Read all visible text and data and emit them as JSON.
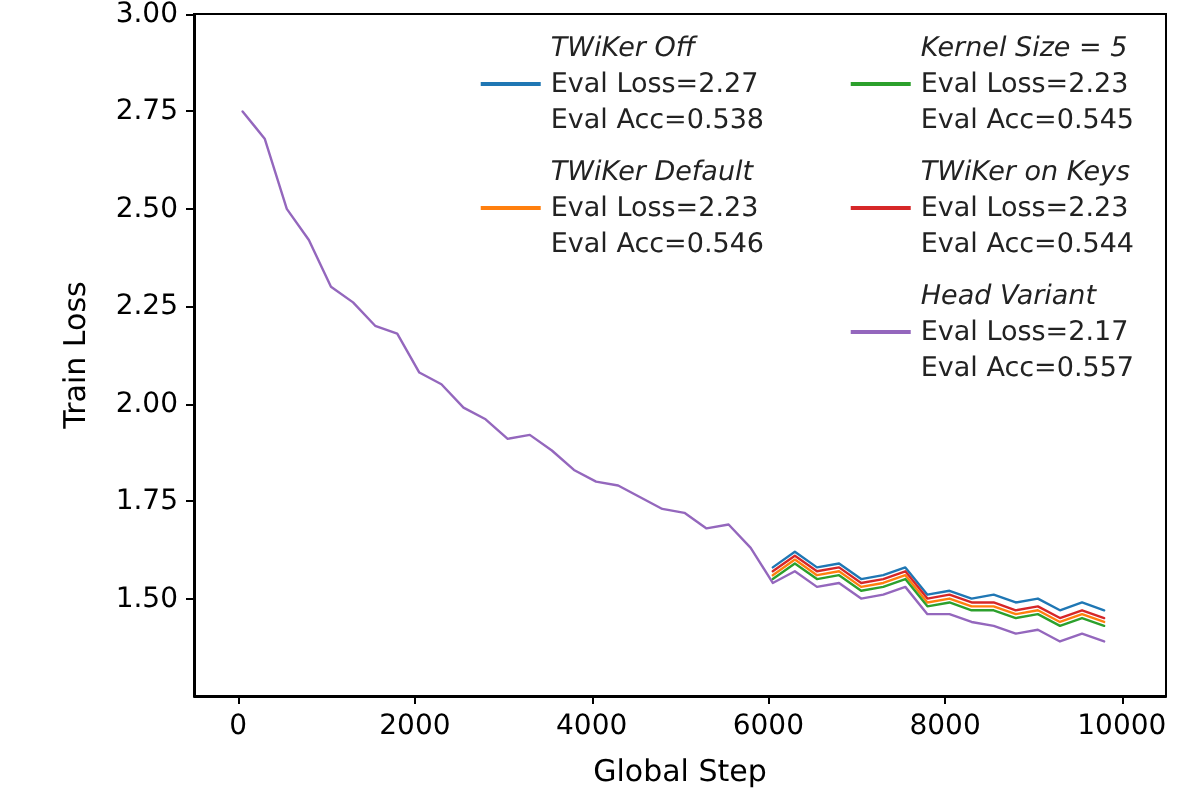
{
  "chart_data": {
    "type": "line",
    "xlabel": "Global Step",
    "ylabel": "Train Loss",
    "x": [
      50,
      300,
      550,
      800,
      1050,
      1300,
      1550,
      1800,
      2050,
      2300,
      2550,
      2800,
      3050,
      3300,
      3550,
      3800,
      4050,
      4300,
      4550,
      4800,
      5050,
      5300,
      5550,
      5800,
      6050,
      6300,
      6550,
      6800,
      7050,
      7300,
      7550,
      7800,
      8050,
      8300,
      8550,
      8800,
      9050,
      9300,
      9550,
      9800
    ],
    "series": [
      {
        "name": "TWiKer Off\nEval Loss=2.27\nEval Acc=0.538",
        "color": "#1f77b4",
        "values": [
          null,
          null,
          null,
          null,
          null,
          null,
          null,
          null,
          null,
          null,
          null,
          null,
          null,
          null,
          null,
          null,
          null,
          null,
          null,
          null,
          null,
          null,
          null,
          null,
          1.58,
          1.62,
          1.58,
          1.59,
          1.55,
          1.56,
          1.58,
          1.51,
          1.52,
          1.5,
          1.51,
          1.49,
          1.5,
          1.47,
          1.49,
          1.47
        ]
      },
      {
        "name": "TWiKer Default\nEval Loss=2.23\nEval Acc=0.546",
        "color": "#ff7f0e",
        "values": [
          null,
          null,
          null,
          null,
          null,
          null,
          null,
          null,
          null,
          null,
          null,
          null,
          null,
          null,
          null,
          null,
          null,
          null,
          null,
          null,
          null,
          null,
          null,
          null,
          1.56,
          1.6,
          1.56,
          1.57,
          1.53,
          1.54,
          1.56,
          1.49,
          1.5,
          1.48,
          1.48,
          1.46,
          1.47,
          1.44,
          1.46,
          1.44
        ]
      },
      {
        "name": "Kernel Size = 5\nEval Loss=2.23\nEval Acc=0.545",
        "color": "#2ca02c",
        "values": [
          null,
          null,
          null,
          null,
          null,
          null,
          null,
          null,
          null,
          null,
          null,
          null,
          null,
          null,
          null,
          null,
          null,
          null,
          null,
          null,
          null,
          null,
          null,
          null,
          1.55,
          1.59,
          1.55,
          1.56,
          1.52,
          1.53,
          1.55,
          1.48,
          1.49,
          1.47,
          1.47,
          1.45,
          1.46,
          1.43,
          1.45,
          1.43
        ]
      },
      {
        "name": "TWiKer on Keys\nEval Loss=2.23\nEval Acc=0.544",
        "color": "#d62728",
        "values": [
          null,
          null,
          null,
          null,
          null,
          null,
          null,
          null,
          null,
          null,
          null,
          null,
          null,
          null,
          null,
          null,
          null,
          null,
          null,
          null,
          null,
          null,
          null,
          null,
          1.57,
          1.61,
          1.57,
          1.58,
          1.54,
          1.55,
          1.57,
          1.5,
          1.51,
          1.49,
          1.49,
          1.47,
          1.48,
          1.45,
          1.47,
          1.45
        ]
      },
      {
        "name": "Head Variant\nEval Loss=2.17\nEval Acc=0.557",
        "color": "#9467bd",
        "values": [
          2.75,
          2.68,
          2.5,
          2.42,
          2.3,
          2.26,
          2.2,
          2.18,
          2.08,
          2.05,
          1.99,
          1.96,
          1.91,
          1.92,
          1.88,
          1.83,
          1.8,
          1.79,
          1.76,
          1.73,
          1.72,
          1.68,
          1.69,
          1.63,
          1.54,
          1.57,
          1.53,
          1.54,
          1.5,
          1.51,
          1.53,
          1.46,
          1.46,
          1.44,
          1.43,
          1.41,
          1.42,
          1.39,
          1.41,
          1.39
        ]
      }
    ],
    "xlim": [
      -500,
      10500
    ],
    "xticks": [
      0,
      2000,
      4000,
      6000,
      8000,
      10000
    ],
    "ylim": [
      1.25,
      3.0
    ],
    "yticks": [
      {
        "value": 1.5,
        "label": "1.50"
      },
      {
        "value": 1.75,
        "label": "1.75"
      },
      {
        "value": 2.0,
        "label": "2.00"
      },
      {
        "value": 2.25,
        "label": "2.25"
      },
      {
        "value": 2.5,
        "label": "2.50"
      },
      {
        "value": 2.75,
        "label": "2.75"
      },
      {
        "value": 3.0,
        "label": "3.00"
      }
    ],
    "grid": false,
    "legend": "top right",
    "marker": "none",
    "line_style": "solid"
  }
}
